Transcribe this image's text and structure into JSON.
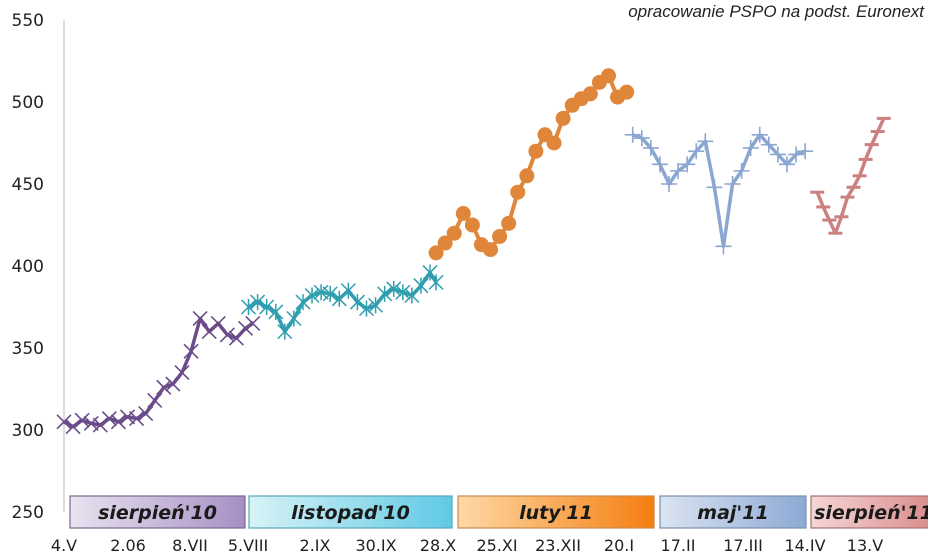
{
  "source_note": "opracowanie PSPO na podst. Euronext",
  "chart_data": {
    "type": "line",
    "ylim": [
      250,
      550
    ],
    "yticks": [
      250,
      300,
      350,
      400,
      450,
      500,
      550
    ],
    "xtick_labels": [
      "4.V",
      "2.06",
      "8.VII",
      "5.VIII",
      "2.IX",
      "30.IX",
      "28.X",
      "25.XI",
      "23.XII",
      "20.I",
      "17.II",
      "17.III",
      "14.IV",
      "13.V"
    ],
    "grid": false,
    "series": [
      {
        "color": "#6b4c8a",
        "marker": "x",
        "x": [
          0,
          0.15,
          0.3,
          0.45,
          0.6,
          0.75,
          0.9,
          1.05,
          1.2,
          1.35,
          1.5,
          1.65,
          1.8,
          1.95,
          2.1,
          2.25,
          2.4,
          2.55,
          2.7,
          2.85,
          3.0,
          3.12
        ],
        "values": [
          305,
          302,
          306,
          304,
          303,
          307,
          305,
          308,
          307,
          310,
          318,
          326,
          328,
          335,
          348,
          368,
          360,
          365,
          358,
          356,
          362,
          365
        ]
      },
      {
        "color": "#2f9eae",
        "marker": "star",
        "x": [
          3.05,
          3.2,
          3.35,
          3.5,
          3.65,
          3.8,
          3.95,
          4.1,
          4.25,
          4.4,
          4.55,
          4.7,
          4.85,
          5.0,
          5.15,
          5.3,
          5.45,
          5.6,
          5.75,
          5.9,
          6.05,
          6.15
        ],
        "values": [
          375,
          378,
          375,
          372,
          360,
          368,
          378,
          382,
          384,
          383,
          380,
          385,
          378,
          374,
          376,
          383,
          386,
          384,
          382,
          388,
          396,
          390
        ]
      },
      {
        "color": "#e0863a",
        "marker": "circle",
        "x": [
          6.15,
          6.3,
          6.45,
          6.6,
          6.75,
          6.9,
          7.05,
          7.2,
          7.35,
          7.5,
          7.65,
          7.8,
          7.95,
          8.1,
          8.25,
          8.4,
          8.55,
          8.7,
          8.85,
          9.0,
          9.15,
          9.3
        ],
        "values": [
          408,
          414,
          420,
          432,
          425,
          413,
          410,
          418,
          426,
          445,
          455,
          470,
          480,
          475,
          490,
          498,
          502,
          505,
          512,
          516,
          503,
          506
        ]
      },
      {
        "color": "#8aa6d1",
        "marker": "plus",
        "x": [
          9.4,
          9.55,
          9.7,
          9.85,
          10.0,
          10.15,
          10.3,
          10.45,
          10.6,
          10.75,
          10.9,
          11.05,
          11.2,
          11.35,
          11.5,
          11.65,
          11.8,
          11.95,
          12.1,
          12.25
        ],
        "values": [
          480,
          478,
          472,
          462,
          450,
          458,
          462,
          470,
          476,
          448,
          412,
          450,
          458,
          472,
          480,
          474,
          468,
          462,
          468,
          470
        ]
      },
      {
        "color": "#cc8080",
        "marker": "dash",
        "x": [
          12.45,
          12.55,
          12.65,
          12.75,
          12.85,
          12.95,
          13.05,
          13.15,
          13.25,
          13.35,
          13.45,
          13.55
        ],
        "values": [
          445,
          436,
          428,
          420,
          430,
          442,
          448,
          455,
          465,
          474,
          482,
          490
        ]
      }
    ],
    "bands": [
      {
        "label": "sierpień'10",
        "color_start": "#e9e3f0",
        "color_end": "#a78fc4",
        "border": "#7a6a8e"
      },
      {
        "label": "listopad'10",
        "color_start": "#d8f3f5",
        "color_end": "#5fc9e6",
        "border": "#5aa8b8"
      },
      {
        "label": "luty'11",
        "color_start": "#fdd9a6",
        "color_end": "#f57e10",
        "border": "#c98a4c"
      },
      {
        "label": "maj'11",
        "color_start": "#dbe4f1",
        "color_end": "#8da9d4",
        "border": "#7a8fae"
      },
      {
        "label": "sierpień'11",
        "color_start": "#f5d6d6",
        "color_end": "#d98a8a",
        "border": "#a67070"
      }
    ]
  }
}
